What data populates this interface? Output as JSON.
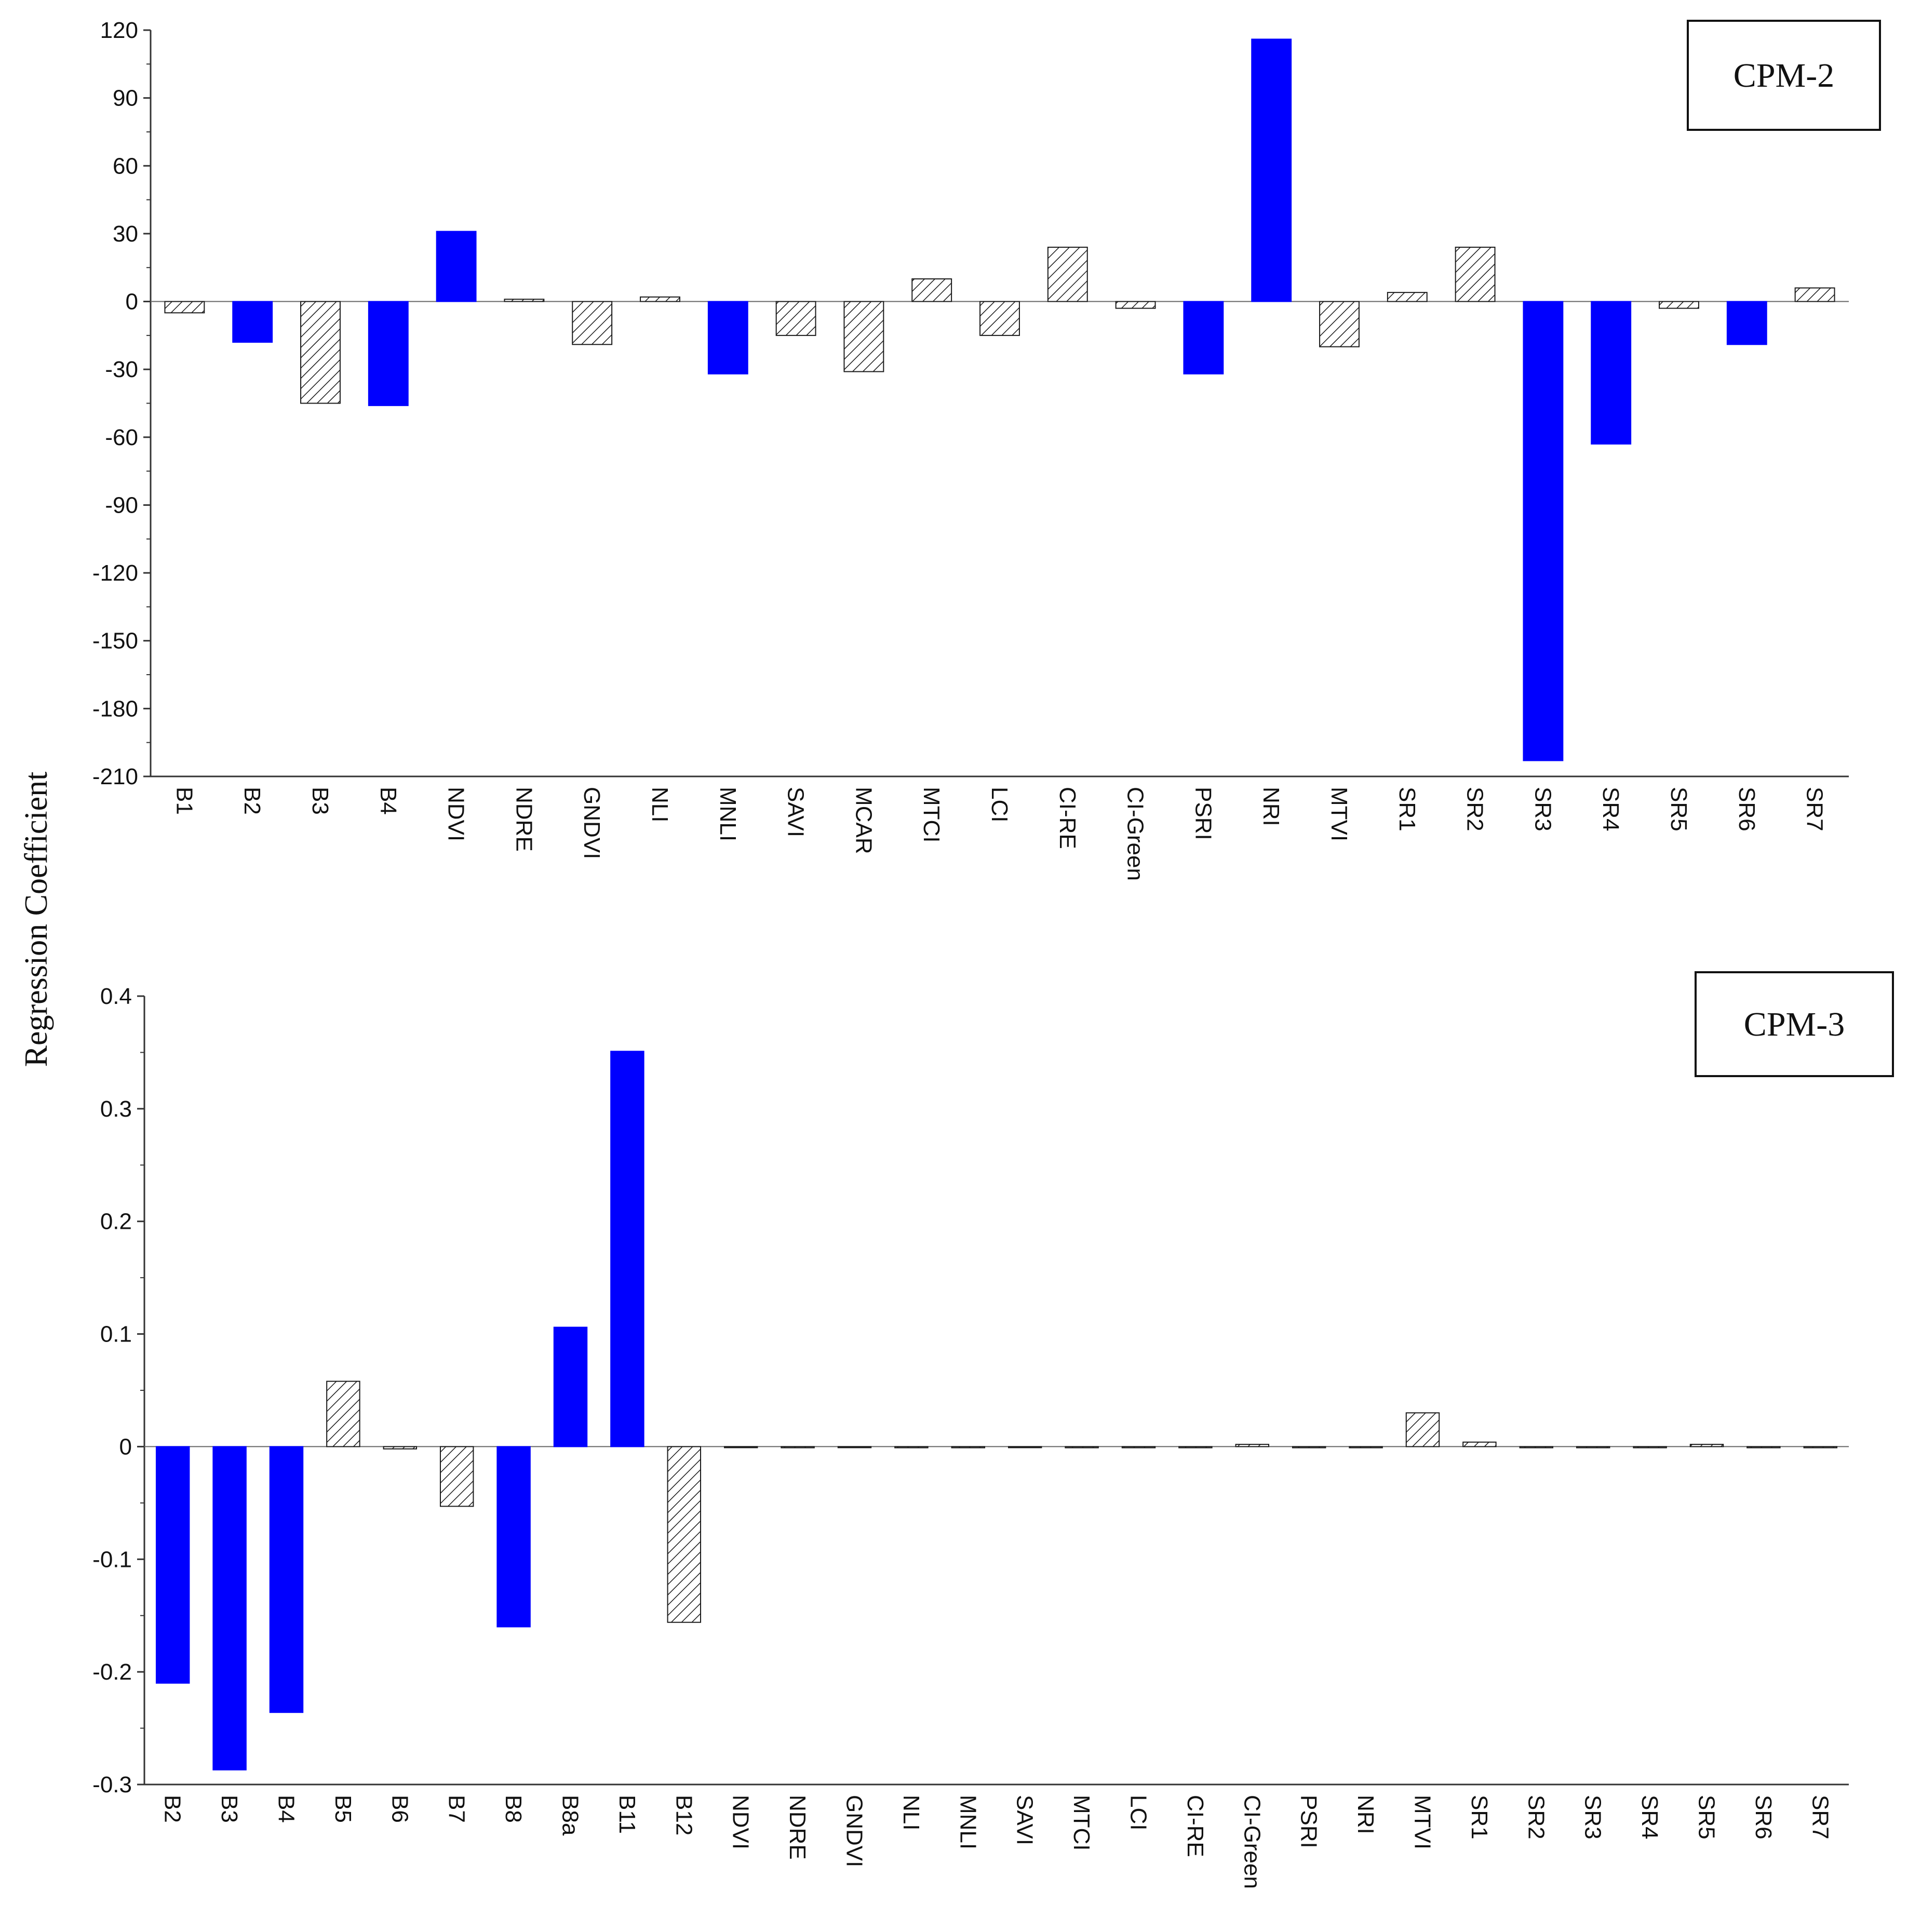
{
  "figure": {
    "ylabel": "Regression Coefficient",
    "colors": {
      "significant": "#0000ff",
      "hatched": "#ffffff",
      "stroke": "#1a1a1a"
    }
  },
  "chart_data": [
    {
      "type": "bar",
      "panel_label": "CPM-2",
      "ylabel": "Regression Coefficient",
      "ylim": [
        -210,
        120
      ],
      "yticks": [
        120,
        90,
        60,
        30,
        0,
        -30,
        -60,
        -90,
        -120,
        -150,
        -180,
        -210
      ],
      "categories": [
        "B1",
        "B2",
        "B3",
        "B4",
        "NDVI",
        "NDRE",
        "GNDVI",
        "NLI",
        "MNLI",
        "SAVI",
        "MCAR",
        "MTCI",
        "LCI",
        "CI-RE",
        "CI-Green",
        "PSRI",
        "NRI",
        "MTVI",
        "SR1",
        "SR2",
        "SR3",
        "SR4",
        "SR5",
        "SR6",
        "SR7"
      ],
      "values": [
        -5,
        -18,
        -45,
        -46,
        31,
        1,
        -19,
        2,
        -32,
        -15,
        -31,
        10,
        -15,
        24,
        -3,
        -32,
        116,
        -20,
        4,
        24,
        -203,
        -63,
        -3,
        -19,
        6
      ],
      "significant": [
        false,
        true,
        false,
        true,
        true,
        false,
        false,
        false,
        true,
        false,
        false,
        false,
        false,
        false,
        false,
        true,
        true,
        false,
        false,
        false,
        true,
        true,
        false,
        true,
        false
      ]
    },
    {
      "type": "bar",
      "panel_label": "CPM-3",
      "ylabel": "Regression Coefficient",
      "ylim": [
        -0.3,
        0.4
      ],
      "yticks": [
        0.4,
        0.3,
        0.2,
        0.1,
        0,
        -0.1,
        -0.2,
        -0.3
      ],
      "categories": [
        "B2",
        "B3",
        "B4",
        "B5",
        "B6",
        "B7",
        "B8",
        "B8a",
        "B11",
        "B12",
        "NDVI",
        "NDRE",
        "GNDVI",
        "NLI",
        "MNLI",
        "SAVI",
        "MTCI",
        "LCI",
        "CI-RE",
        "CI-Green",
        "PSRI",
        "NRI",
        "MTVI",
        "SR1",
        "SR2",
        "SR3",
        "SR4",
        "SR5",
        "SR6",
        "SR7"
      ],
      "values": [
        -0.21,
        -0.287,
        -0.236,
        0.058,
        -0.002,
        -0.053,
        -0.16,
        0.106,
        0.351,
        -0.156,
        0,
        -0.001,
        0,
        -0.001,
        -0.001,
        0,
        -0.001,
        -0.001,
        -0.001,
        0.002,
        -0.001,
        -0.001,
        0.03,
        0.004,
        -0.001,
        -0.001,
        -0.001,
        0.002,
        -0.001,
        -0.001
      ],
      "significant": [
        true,
        true,
        true,
        false,
        false,
        false,
        true,
        true,
        true,
        false,
        false,
        false,
        false,
        false,
        false,
        false,
        false,
        false,
        false,
        false,
        false,
        false,
        false,
        false,
        false,
        false,
        false,
        false,
        false,
        false
      ]
    }
  ]
}
